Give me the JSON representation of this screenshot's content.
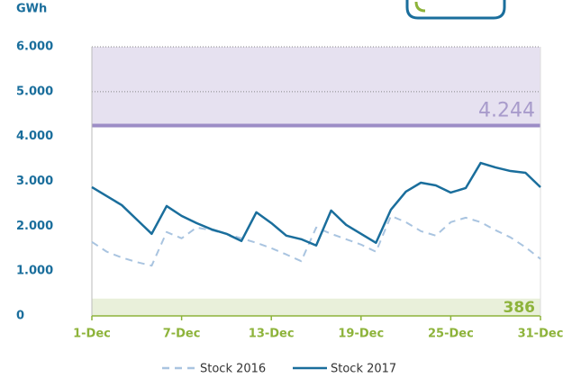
{
  "chart_data": {
    "type": "line",
    "y_unit": "GWh",
    "x": [
      1,
      2,
      3,
      4,
      5,
      6,
      7,
      8,
      9,
      10,
      11,
      12,
      13,
      14,
      15,
      16,
      17,
      18,
      19,
      20,
      21,
      22,
      23,
      24,
      25,
      26,
      27,
      28,
      29,
      30,
      31
    ],
    "xlim": [
      1,
      31
    ],
    "xticks": [
      {
        "value": 1,
        "label": "1-Dec"
      },
      {
        "value": 7,
        "label": "7-Dec"
      },
      {
        "value": 13,
        "label": "13-Dec"
      },
      {
        "value": 19,
        "label": "19-Dec"
      },
      {
        "value": 25,
        "label": "25-Dec"
      },
      {
        "value": 31,
        "label": "31-Dec"
      }
    ],
    "ylim": [
      0,
      6000
    ],
    "yticks": [
      0,
      {
        "value": 1000,
        "label": "1.000"
      },
      {
        "value": 2000,
        "label": "2.000"
      },
      {
        "value": 3000,
        "label": "3.000"
      },
      {
        "value": 4000,
        "label": "4.000"
      },
      {
        "value": 5000,
        "label": "5.000"
      },
      {
        "value": 6000,
        "label": "6.000"
      }
    ],
    "bands": [
      {
        "from": 4244,
        "to": 6000,
        "color": "#e6e1f0",
        "line_color": "#9c8cc6",
        "label": "4.244",
        "label_color": "#a89bcb"
      },
      {
        "from": 0,
        "to": 386,
        "color": "#e9f0da",
        "label": "386",
        "label_color": "#8db33a"
      }
    ],
    "series": [
      {
        "name": "Stock 2016",
        "color": "#a9c4e0",
        "dash": true,
        "values": [
          1650,
          1430,
          1300,
          1200,
          1120,
          1870,
          1730,
          1970,
          1910,
          1830,
          1730,
          1630,
          1510,
          1370,
          1220,
          1970,
          1830,
          1710,
          1590,
          1430,
          2230,
          2090,
          1890,
          1790,
          2090,
          2190,
          2090,
          1910,
          1750,
          1530,
          1270
        ]
      },
      {
        "name": "Stock 2017",
        "color": "#1a6e9c",
        "dash": false,
        "values": [
          2870,
          2670,
          2470,
          2150,
          1830,
          2450,
          2230,
          2070,
          1930,
          1830,
          1670,
          2310,
          2070,
          1790,
          1710,
          1570,
          2350,
          2030,
          1830,
          1630,
          2370,
          2770,
          2970,
          2910,
          2750,
          2850,
          3410,
          3310,
          3230,
          3190,
          2870
        ]
      }
    ]
  }
}
